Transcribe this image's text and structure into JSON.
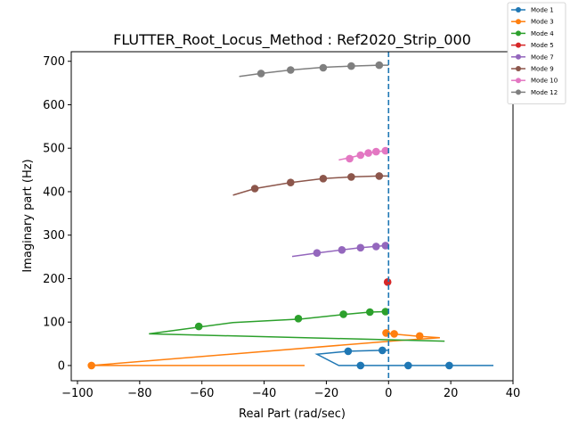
{
  "chart_data": {
    "type": "line",
    "title": "FLUTTER_Root_Locus_Method : Ref2020_Strip_000",
    "xlabel": "Real Part (rad/sec)",
    "ylabel": "Imaginary part (Hz)",
    "xlim": [
      -102,
      40
    ],
    "ylim": [
      -35,
      722
    ],
    "xticks": [
      -100,
      -80,
      -60,
      -40,
      -20,
      0,
      20,
      40
    ],
    "yticks": [
      0,
      100,
      200,
      300,
      400,
      500,
      600,
      700
    ],
    "grid": false,
    "legend_position": "outside top-right",
    "vline": {
      "x": 0,
      "style": "dashed",
      "color": "#1f77b4"
    },
    "series": [
      {
        "name": "Mode 1",
        "color": "#1f77b4",
        "line": [
          [
            33.7,
            0
          ],
          [
            19.5,
            0
          ],
          [
            6.3,
            0
          ],
          [
            -7,
            0
          ],
          [
            -16,
            0
          ],
          [
            -23,
            26
          ],
          [
            -13,
            33
          ],
          [
            -2,
            35
          ],
          [
            0,
            35
          ]
        ],
        "markers": [
          [
            19.5,
            0
          ],
          [
            6.3,
            0
          ],
          [
            -9,
            0
          ],
          [
            -13,
            33
          ],
          [
            -2,
            35
          ]
        ]
      },
      {
        "name": "Mode 3",
        "color": "#ff7f0e",
        "line": [
          [
            -27,
            0
          ],
          [
            -95.5,
            0
          ],
          [
            2,
            57
          ],
          [
            16.5,
            64
          ],
          [
            10,
            67
          ],
          [
            2,
            72
          ],
          [
            -1,
            74
          ]
        ],
        "markers": [
          [
            -95.5,
            0
          ],
          [
            1.8,
            73
          ],
          [
            10,
            68
          ],
          [
            -0.8,
            75
          ]
        ]
      },
      {
        "name": "Mode 4",
        "color": "#2ca02c",
        "line": [
          [
            18,
            56
          ],
          [
            -77,
            73
          ],
          [
            -50,
            99
          ],
          [
            -28,
            107
          ],
          [
            -15,
            117
          ],
          [
            -6,
            123
          ],
          [
            -1,
            124
          ]
        ],
        "markers": [
          [
            -61,
            90
          ],
          [
            -29,
            108
          ],
          [
            -14.5,
            118
          ],
          [
            -6,
            123
          ],
          [
            -1,
            124
          ]
        ]
      },
      {
        "name": "Mode 5",
        "color": "#d62728",
        "line": [
          [
            -0.5,
            191
          ],
          [
            0,
            192
          ]
        ],
        "markers": [
          [
            -0.3,
            192
          ]
        ]
      },
      {
        "name": "Mode 7",
        "color": "#9467bd",
        "line": [
          [
            -31,
            251
          ],
          [
            -23,
            259
          ],
          [
            -15,
            266
          ],
          [
            -9,
            271
          ],
          [
            -4,
            274
          ],
          [
            -1,
            276
          ]
        ],
        "markers": [
          [
            -23,
            259
          ],
          [
            -15,
            266
          ],
          [
            -9,
            271
          ],
          [
            -4,
            274
          ],
          [
            -1,
            276
          ]
        ]
      },
      {
        "name": "Mode 9",
        "color": "#8c564b",
        "line": [
          [
            -50,
            392
          ],
          [
            -43,
            407
          ],
          [
            -31.5,
            421
          ],
          [
            -21,
            430
          ],
          [
            -12,
            434
          ],
          [
            -3,
            436
          ],
          [
            0,
            436
          ]
        ],
        "markers": [
          [
            -43,
            407
          ],
          [
            -31.5,
            421
          ],
          [
            -21,
            430
          ],
          [
            -12,
            434
          ],
          [
            -3,
            436
          ]
        ]
      },
      {
        "name": "Mode 10",
        "color": "#e377c2",
        "line": [
          [
            -16,
            473
          ],
          [
            -12.5,
            478
          ],
          [
            -9,
            484
          ],
          [
            -6.5,
            489
          ],
          [
            -4,
            492
          ],
          [
            -1,
            494
          ]
        ],
        "markers": [
          [
            -12.5,
            476
          ],
          [
            -9,
            484
          ],
          [
            -6.5,
            489
          ],
          [
            -4,
            492
          ],
          [
            -1,
            494
          ]
        ]
      },
      {
        "name": "Mode 12",
        "color": "#7f7f7f",
        "line": [
          [
            -48,
            665
          ],
          [
            -41,
            672
          ],
          [
            -31.5,
            680
          ],
          [
            -21,
            686
          ],
          [
            -12,
            689
          ],
          [
            -3,
            691
          ],
          [
            0,
            691
          ]
        ],
        "markers": [
          [
            -41,
            672
          ],
          [
            -31.5,
            680
          ],
          [
            -21,
            685
          ],
          [
            -12,
            689
          ],
          [
            -3,
            691
          ]
        ]
      }
    ]
  }
}
